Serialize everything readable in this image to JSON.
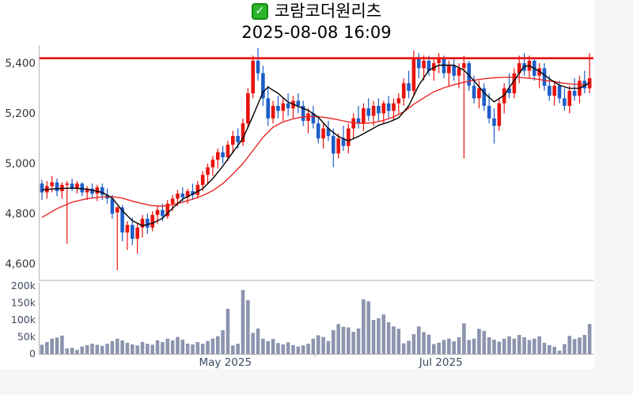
{
  "header": {
    "check_icon": "✓",
    "stock_name": "코람코더원리츠",
    "timestamp": "2025-08-08 16:09"
  },
  "colors": {
    "up_candle": "#e8130d",
    "down_candle": "#1d5ec8",
    "resistance_line": "#ee0f0f",
    "ma_fast": "#000000",
    "ma_slow": "#e82424",
    "volume_bar": "#8c94ae",
    "axis_line": "#b3b3b3",
    "price_label": "#333333",
    "slate_label": "#3e4a63",
    "plot_bg": "#ffffff"
  },
  "chart_data": {
    "type": "candlestick",
    "title": "코람코더원리츠",
    "subtitle": "2025-08-08 16:09",
    "legend_position": "none",
    "grid": false,
    "price_axis": {
      "tick_labels": [
        "5,400",
        "5,200",
        "5,000",
        "4,800",
        "4,600"
      ],
      "tick_values": [
        5400,
        5200,
        5000,
        4800,
        4600
      ],
      "range": [
        4535,
        5480
      ]
    },
    "volume_axis": {
      "tick_labels": [
        "200k",
        "150k",
        "100k",
        "50k",
        "0"
      ],
      "tick_values": [
        200000,
        150000,
        100000,
        50000,
        0
      ],
      "range": [
        0,
        210000
      ]
    },
    "x_axis": {
      "labels": [
        {
          "text": "May 2025",
          "index": 36.5
        },
        {
          "text": "Jul 2025",
          "index": 79.4
        }
      ],
      "minor_tick_index": 54.3
    },
    "resistance_level": 5420,
    "candles": [
      [
        4920,
        4935,
        4855,
        4885
      ],
      [
        4885,
        4930,
        4860,
        4910
      ],
      [
        4910,
        4950,
        4885,
        4925
      ],
      [
        4925,
        4940,
        4870,
        4890
      ],
      [
        4890,
        4925,
        4860,
        4915
      ],
      [
        4915,
        4930,
        4680,
        4920
      ],
      [
        4920,
        4940,
        4890,
        4900
      ],
      [
        4900,
        4930,
        4880,
        4920
      ],
      [
        4920,
        4925,
        4870,
        4885
      ],
      [
        4885,
        4910,
        4855,
        4900
      ],
      [
        4900,
        4920,
        4860,
        4880
      ],
      [
        4880,
        4915,
        4850,
        4905
      ],
      [
        4905,
        4920,
        4855,
        4875
      ],
      [
        4875,
        4900,
        4840,
        4860
      ],
      [
        4860,
        4875,
        4780,
        4800
      ],
      [
        4805,
        4830,
        4575,
        4825
      ],
      [
        4825,
        4835,
        4690,
        4725
      ],
      [
        4725,
        4770,
        4655,
        4755
      ],
      [
        4755,
        4785,
        4675,
        4700
      ],
      [
        4700,
        4760,
        4640,
        4745
      ],
      [
        4745,
        4795,
        4705,
        4780
      ],
      [
        4780,
        4800,
        4720,
        4745
      ],
      [
        4745,
        4810,
        4730,
        4795
      ],
      [
        4795,
        4830,
        4760,
        4815
      ],
      [
        4815,
        4840,
        4770,
        4790
      ],
      [
        4790,
        4855,
        4780,
        4840
      ],
      [
        4840,
        4875,
        4810,
        4860
      ],
      [
        4860,
        4895,
        4830,
        4880
      ],
      [
        4880,
        4905,
        4845,
        4865
      ],
      [
        4865,
        4900,
        4840,
        4890
      ],
      [
        4890,
        4920,
        4855,
        4875
      ],
      [
        4875,
        4930,
        4860,
        4915
      ],
      [
        4915,
        4970,
        4890,
        4955
      ],
      [
        4955,
        5000,
        4920,
        4985
      ],
      [
        4985,
        5030,
        4950,
        5015
      ],
      [
        5015,
        5060,
        4980,
        5045
      ],
      [
        5045,
        5070,
        5000,
        5025
      ],
      [
        5025,
        5090,
        5010,
        5075
      ],
      [
        5075,
        5130,
        5040,
        5110
      ],
      [
        5110,
        5140,
        5060,
        5085
      ],
      [
        5085,
        5180,
        5070,
        5160
      ],
      [
        5160,
        5300,
        5140,
        5280
      ],
      [
        5280,
        5430,
        5260,
        5410
      ],
      [
        5410,
        5460,
        5330,
        5360
      ],
      [
        5360,
        5390,
        5230,
        5260
      ],
      [
        5260,
        5310,
        5150,
        5180
      ],
      [
        5180,
        5250,
        5160,
        5230
      ],
      [
        5230,
        5270,
        5180,
        5210
      ],
      [
        5210,
        5260,
        5170,
        5240
      ],
      [
        5240,
        5280,
        5190,
        5220
      ],
      [
        5220,
        5270,
        5180,
        5250
      ],
      [
        5250,
        5280,
        5200,
        5230
      ],
      [
        5230,
        5250,
        5150,
        5170
      ],
      [
        5170,
        5220,
        5120,
        5200
      ],
      [
        5200,
        5230,
        5140,
        5160
      ],
      [
        5160,
        5190,
        5080,
        5100
      ],
      [
        5100,
        5160,
        5060,
        5140
      ],
      [
        5140,
        5170,
        5090,
        5110
      ],
      [
        5110,
        5140,
        4985,
        5040
      ],
      [
        5040,
        5120,
        5020,
        5100
      ],
      [
        5100,
        5150,
        5050,
        5070
      ],
      [
        5070,
        5160,
        5040,
        5140
      ],
      [
        5140,
        5200,
        5100,
        5180
      ],
      [
        5180,
        5230,
        5140,
        5160
      ],
      [
        5160,
        5240,
        5130,
        5220
      ],
      [
        5220,
        5260,
        5170,
        5190
      ],
      [
        5190,
        5250,
        5150,
        5230
      ],
      [
        5230,
        5260,
        5170,
        5200
      ],
      [
        5200,
        5250,
        5160,
        5240
      ],
      [
        5240,
        5270,
        5180,
        5210
      ],
      [
        5210,
        5260,
        5170,
        5240
      ],
      [
        5240,
        5280,
        5200,
        5260
      ],
      [
        5260,
        5340,
        5230,
        5320
      ],
      [
        5320,
        5370,
        5260,
        5290
      ],
      [
        5290,
        5450,
        5270,
        5420
      ],
      [
        5420,
        5440,
        5340,
        5380
      ],
      [
        5380,
        5430,
        5330,
        5410
      ],
      [
        5410,
        5430,
        5350,
        5370
      ],
      [
        5370,
        5420,
        5330,
        5400
      ],
      [
        5400,
        5440,
        5360,
        5420
      ],
      [
        5420,
        5430,
        5340,
        5360
      ],
      [
        5360,
        5410,
        5310,
        5390
      ],
      [
        5390,
        5420,
        5330,
        5350
      ],
      [
        5350,
        5400,
        5300,
        5380
      ],
      [
        5380,
        5430,
        5020,
        5400
      ],
      [
        5400,
        5410,
        5290,
        5310
      ],
      [
        5310,
        5350,
        5240,
        5260
      ],
      [
        5260,
        5330,
        5220,
        5300
      ],
      [
        5300,
        5320,
        5210,
        5230
      ],
      [
        5230,
        5280,
        5160,
        5180
      ],
      [
        5180,
        5220,
        5080,
        5150
      ],
      [
        5150,
        5260,
        5130,
        5240
      ],
      [
        5240,
        5320,
        5200,
        5300
      ],
      [
        5300,
        5360,
        5260,
        5280
      ],
      [
        5280,
        5380,
        5260,
        5360
      ],
      [
        5360,
        5430,
        5320,
        5400
      ],
      [
        5400,
        5440,
        5350,
        5370
      ],
      [
        5370,
        5430,
        5340,
        5410
      ],
      [
        5410,
        5420,
        5330,
        5350
      ],
      [
        5350,
        5400,
        5300,
        5380
      ],
      [
        5380,
        5400,
        5290,
        5310
      ],
      [
        5310,
        5350,
        5250,
        5270
      ],
      [
        5270,
        5330,
        5230,
        5310
      ],
      [
        5310,
        5330,
        5240,
        5260
      ],
      [
        5260,
        5300,
        5210,
        5230
      ],
      [
        5230,
        5310,
        5200,
        5290
      ],
      [
        5290,
        5340,
        5250,
        5270
      ],
      [
        5270,
        5350,
        5240,
        5330
      ],
      [
        5330,
        5370,
        5280,
        5300
      ],
      [
        5300,
        5440,
        5280,
        5340
      ]
    ],
    "volumes": [
      27000,
      35000,
      45000,
      48000,
      54000,
      16000,
      18000,
      12000,
      22000,
      26000,
      30000,
      27000,
      24000,
      30000,
      38000,
      45000,
      40000,
      33000,
      28000,
      25000,
      35000,
      30000,
      27000,
      40000,
      35000,
      45000,
      40000,
      50000,
      42000,
      30000,
      28000,
      35000,
      30000,
      38000,
      45000,
      52000,
      70000,
      133000,
      25000,
      30000,
      188000,
      158000,
      62000,
      75000,
      45000,
      38000,
      44000,
      32000,
      28000,
      34000,
      26000,
      22000,
      25000,
      30000,
      45000,
      55000,
      50000,
      38000,
      70000,
      88000,
      80000,
      78000,
      65000,
      75000,
      161000,
      155000,
      100000,
      105000,
      116000,
      93000,
      81000,
      74000,
      31000,
      39000,
      58000,
      81000,
      64000,
      57000,
      29000,
      33000,
      41000,
      45000,
      37000,
      49000,
      90000,
      41000,
      45000,
      74000,
      68000,
      49000,
      42000,
      36000,
      45000,
      52000,
      45000,
      56000,
      49000,
      41000,
      45000,
      52000,
      33000,
      26000,
      21000,
      10000,
      29000,
      53000,
      44000,
      48000,
      56000,
      88000
    ],
    "ma_fast_points": [
      [
        0,
        4895
      ],
      [
        3,
        4900
      ],
      [
        6,
        4902
      ],
      [
        9,
        4898
      ],
      [
        12,
        4885
      ],
      [
        14,
        4862
      ],
      [
        16,
        4812
      ],
      [
        18,
        4772
      ],
      [
        20,
        4752
      ],
      [
        22,
        4762
      ],
      [
        24,
        4782
      ],
      [
        26,
        4822
      ],
      [
        28,
        4858
      ],
      [
        30,
        4878
      ],
      [
        32,
        4900
      ],
      [
        34,
        4940
      ],
      [
        36,
        4990
      ],
      [
        38,
        5045
      ],
      [
        40,
        5100
      ],
      [
        42,
        5190
      ],
      [
        44,
        5285
      ],
      [
        45,
        5305
      ],
      [
        47,
        5280
      ],
      [
        49,
        5245
      ],
      [
        51,
        5228
      ],
      [
        53,
        5212
      ],
      [
        55,
        5185
      ],
      [
        57,
        5140
      ],
      [
        59,
        5108
      ],
      [
        61,
        5090
      ],
      [
        63,
        5108
      ],
      [
        65,
        5130
      ],
      [
        67,
        5152
      ],
      [
        69,
        5165
      ],
      [
        71,
        5182
      ],
      [
        73,
        5230
      ],
      [
        75,
        5312
      ],
      [
        77,
        5372
      ],
      [
        79,
        5392
      ],
      [
        82,
        5392
      ],
      [
        84,
        5372
      ],
      [
        86,
        5330
      ],
      [
        88,
        5282
      ],
      [
        90,
        5246
      ],
      [
        92,
        5272
      ],
      [
        94,
        5332
      ],
      [
        96,
        5388
      ],
      [
        97,
        5390
      ],
      [
        99,
        5368
      ],
      [
        101,
        5338
      ],
      [
        103,
        5312
      ],
      [
        105,
        5300
      ],
      [
        107,
        5300
      ],
      [
        109,
        5322
      ]
    ],
    "ma_slow_points": [
      [
        0,
        4785
      ],
      [
        3,
        4820
      ],
      [
        6,
        4846
      ],
      [
        9,
        4860
      ],
      [
        12,
        4867
      ],
      [
        14,
        4868
      ],
      [
        16,
        4862
      ],
      [
        18,
        4850
      ],
      [
        20,
        4840
      ],
      [
        22,
        4832
      ],
      [
        24,
        4830
      ],
      [
        26,
        4836
      ],
      [
        28,
        4846
      ],
      [
        30,
        4858
      ],
      [
        32,
        4872
      ],
      [
        34,
        4892
      ],
      [
        36,
        4920
      ],
      [
        38,
        4958
      ],
      [
        40,
        5000
      ],
      [
        42,
        5052
      ],
      [
        44,
        5105
      ],
      [
        46,
        5145
      ],
      [
        48,
        5166
      ],
      [
        50,
        5178
      ],
      [
        52,
        5186
      ],
      [
        54,
        5188
      ],
      [
        56,
        5185
      ],
      [
        58,
        5178
      ],
      [
        60,
        5170
      ],
      [
        62,
        5162
      ],
      [
        64,
        5160
      ],
      [
        66,
        5163
      ],
      [
        68,
        5172
      ],
      [
        70,
        5186
      ],
      [
        72,
        5206
      ],
      [
        74,
        5236
      ],
      [
        76,
        5262
      ],
      [
        78,
        5286
      ],
      [
        80,
        5302
      ],
      [
        82,
        5314
      ],
      [
        84,
        5324
      ],
      [
        86,
        5332
      ],
      [
        88,
        5338
      ],
      [
        90,
        5342
      ],
      [
        92,
        5344
      ],
      [
        94,
        5344
      ],
      [
        96,
        5342
      ],
      [
        98,
        5338
      ],
      [
        100,
        5332
      ],
      [
        102,
        5326
      ],
      [
        104,
        5320
      ],
      [
        106,
        5316
      ],
      [
        108,
        5314
      ],
      [
        109,
        5318
      ]
    ]
  }
}
